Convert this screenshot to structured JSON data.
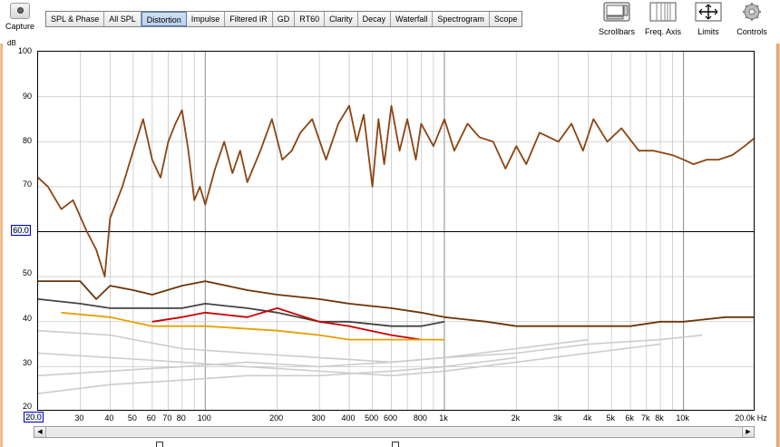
{
  "capture": {
    "label": "Capture"
  },
  "tabs": [
    {
      "label": "SPL & Phase",
      "active": false
    },
    {
      "label": "All SPL",
      "active": false
    },
    {
      "label": "Distortion",
      "active": true
    },
    {
      "label": "Impulse",
      "active": false
    },
    {
      "label": "Filtered IR",
      "active": false
    },
    {
      "label": "GD",
      "active": false
    },
    {
      "label": "RT60",
      "active": false
    },
    {
      "label": "Clarity",
      "active": false
    },
    {
      "label": "Decay",
      "active": false
    },
    {
      "label": "Waterfall",
      "active": false
    },
    {
      "label": "Spectrogram",
      "active": false
    },
    {
      "label": "Scope",
      "active": false
    }
  ],
  "tools": {
    "scrollbars": "Scrollbars",
    "freq_axis": "Freq. Axis",
    "limits": "Limits",
    "controls": "Controls"
  },
  "y_axis": {
    "unit": "dB",
    "ticks": [
      "100",
      "90",
      "80",
      "70",
      "50",
      "40",
      "30"
    ],
    "highlight_value": "60.0",
    "bottom_value": "20"
  },
  "x_axis": {
    "start_value": "20.0",
    "ticks": [
      "30",
      "40",
      "50",
      "60",
      "70",
      "80",
      "100",
      "200",
      "300",
      "400",
      "500",
      "600",
      "800",
      "1k",
      "2k",
      "3k",
      "4k",
      "5k",
      "6k",
      "7k",
      "8k",
      "10k",
      "20.0k Hz"
    ]
  },
  "colors": {
    "fundamental": "#8b4513",
    "thd": "#6b3508",
    "h2": "#444444",
    "h3": "#cc0000",
    "h4": "#e8a000",
    "harmonics_faint": "#cccccc",
    "active_tab": "#bcd2ee"
  },
  "chart_data": {
    "type": "line",
    "xlabel": "Hz",
    "ylabel": "dB",
    "x_scale": "log",
    "xlim": [
      20,
      20000
    ],
    "ylim": [
      20,
      100
    ],
    "grid": true,
    "series": [
      {
        "color": "#8b4513",
        "x": [
          20,
          22,
          25,
          28,
          32,
          35,
          38,
          40,
          45,
          50,
          55,
          60,
          65,
          70,
          75,
          80,
          85,
          90,
          95,
          100,
          110,
          120,
          130,
          140,
          150,
          170,
          190,
          210,
          230,
          250,
          280,
          320,
          360,
          400,
          430,
          460,
          500,
          530,
          560,
          600,
          650,
          700,
          760,
          800,
          900,
          1000,
          1100,
          1250,
          1400,
          1600,
          1800,
          2000,
          2200,
          2500,
          3000,
          3400,
          3800,
          4200,
          4800,
          5500,
          6500,
          7500,
          9000,
          10000,
          11000,
          12500,
          14000,
          16000,
          18000,
          20000
        ],
        "y": [
          72,
          70,
          65,
          67,
          60,
          56,
          50,
          63,
          70,
          78,
          85,
          76,
          72,
          80,
          84,
          87,
          78,
          67,
          70,
          66,
          74,
          80,
          73,
          78,
          71,
          78,
          85,
          76,
          78,
          82,
          85,
          76,
          84,
          88,
          80,
          86,
          70,
          85,
          75,
          88,
          78,
          85,
          76,
          84,
          79,
          85,
          78,
          84,
          81,
          80,
          74,
          79,
          75,
          82,
          80,
          84,
          78,
          85,
          80,
          83,
          78,
          78,
          77,
          76,
          75,
          76,
          76,
          77,
          79,
          81
        ]
      },
      {
        "color": "#6b3508",
        "x": [
          20,
          25,
          30,
          35,
          40,
          50,
          60,
          80,
          100,
          150,
          200,
          300,
          400,
          600,
          800,
          1000,
          1500,
          2000,
          3000,
          4000,
          6000,
          8000,
          10000,
          15000,
          20000
        ],
        "y": [
          49,
          49,
          49,
          45,
          48,
          47,
          46,
          48,
          49,
          47,
          46,
          45,
          44,
          43,
          42,
          41,
          40,
          39,
          39,
          39,
          39,
          40,
          40,
          41,
          41
        ]
      },
      {
        "color": "#444444",
        "x": [
          20,
          30,
          40,
          60,
          80,
          100,
          150,
          200,
          300,
          400,
          600,
          800,
          1000
        ],
        "y": [
          45,
          44,
          43,
          43,
          43,
          44,
          43,
          42,
          40,
          40,
          39,
          39,
          40
        ]
      },
      {
        "color": "#cc0000",
        "x": [
          60,
          80,
          100,
          150,
          200,
          300,
          400,
          600,
          800
        ],
        "y": [
          40,
          41,
          42,
          41,
          43,
          40,
          39,
          37,
          36
        ]
      },
      {
        "color": "#e8a000",
        "x": [
          25,
          40,
          60,
          100,
          200,
          300,
          400,
          600,
          800,
          1000
        ],
        "y": [
          42,
          41,
          39,
          39,
          38,
          37,
          36,
          36,
          36,
          36
        ]
      },
      {
        "color": "#cccccc",
        "x": [
          20,
          40,
          80,
          150,
          300,
          600,
          1000,
          2000,
          4000,
          8000,
          12000
        ],
        "y": [
          28,
          29,
          30,
          31,
          30,
          31,
          32,
          33,
          35,
          36,
          37
        ]
      },
      {
        "color": "#cccccc",
        "x": [
          20,
          40,
          80,
          150,
          300,
          600,
          1000,
          2000,
          4000,
          8000
        ],
        "y": [
          33,
          32,
          31,
          30,
          29,
          28,
          29,
          31,
          33,
          35
        ]
      },
      {
        "color": "#cccccc",
        "x": [
          20,
          40,
          80,
          150,
          300,
          600,
          1000,
          2000,
          4000
        ],
        "y": [
          38,
          37,
          34,
          33,
          32,
          31,
          32,
          34,
          36
        ]
      },
      {
        "color": "#cccccc",
        "x": [
          20,
          40,
          80,
          150,
          300,
          600,
          1000,
          2000
        ],
        "y": [
          24,
          26,
          27,
          28,
          28,
          29,
          30,
          32
        ]
      }
    ]
  }
}
